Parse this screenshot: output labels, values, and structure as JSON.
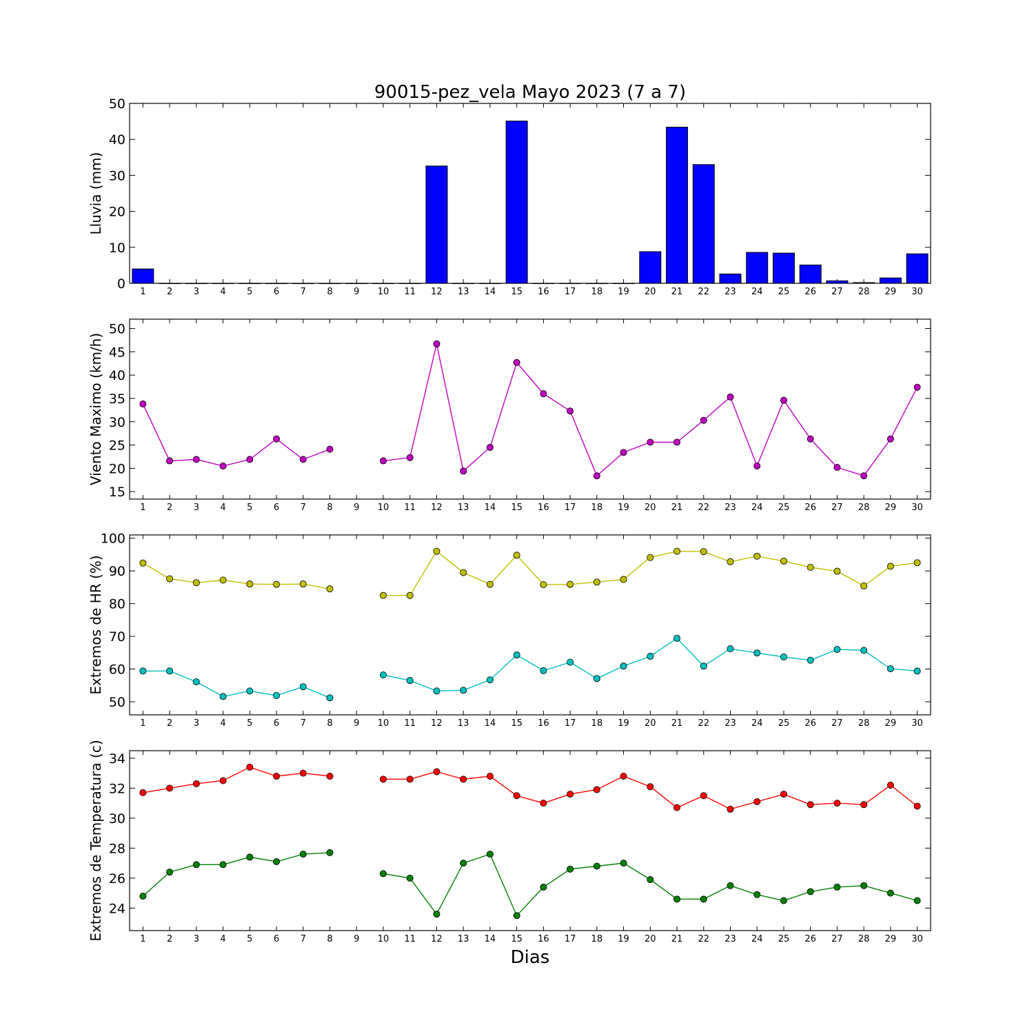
{
  "figure": {
    "title": "90015-pez_vela Mayo 2023  (7 a 7)",
    "xlabel": "Dias"
  },
  "chart_data": [
    {
      "type": "bar",
      "ylabel": "Lluvia (mm)",
      "ylim": [
        0,
        50
      ],
      "yticks": [
        0,
        10,
        20,
        30,
        40,
        50
      ],
      "categories": [
        1,
        2,
        3,
        4,
        5,
        6,
        7,
        8,
        9,
        10,
        11,
        12,
        13,
        14,
        15,
        16,
        17,
        18,
        19,
        20,
        21,
        22,
        23,
        24,
        25,
        26,
        27,
        28,
        29,
        30
      ],
      "series": [
        {
          "color": "#0000ff",
          "values": [
            4.0,
            0,
            0,
            0,
            0,
            0,
            0,
            0,
            0,
            0,
            0,
            32.6,
            0,
            0,
            45.1,
            0,
            0,
            0,
            0,
            8.8,
            43.4,
            33.0,
            2.6,
            8.6,
            8.4,
            5.1,
            0.7,
            0.2,
            1.5,
            8.2
          ]
        }
      ]
    },
    {
      "type": "line",
      "ylabel": "Viento Maximo (km/h)",
      "ylim": [
        13.4,
        52
      ],
      "yticks": [
        15,
        20,
        25,
        30,
        35,
        40,
        45,
        50
      ],
      "categories": [
        1,
        2,
        3,
        4,
        5,
        6,
        7,
        8,
        9,
        10,
        11,
        12,
        13,
        14,
        15,
        16,
        17,
        18,
        19,
        20,
        21,
        22,
        23,
        24,
        25,
        26,
        27,
        28,
        29,
        30
      ],
      "series": [
        {
          "color": "#bf00bf",
          "values": [
            33.8,
            21.6,
            21.9,
            20.5,
            21.9,
            26.3,
            21.9,
            24.1,
            null,
            21.6,
            22.3,
            46.7,
            19.4,
            24.5,
            42.7,
            36.0,
            32.3,
            18.4,
            23.4,
            25.6,
            25.6,
            30.3,
            35.3,
            20.5,
            34.6,
            26.3,
            20.2,
            18.4,
            26.3,
            37.4
          ]
        }
      ]
    },
    {
      "type": "line",
      "ylabel": "Extremos de HR (%)",
      "ylim": [
        46,
        101
      ],
      "yticks": [
        50,
        60,
        70,
        80,
        90,
        100
      ],
      "categories": [
        1,
        2,
        3,
        4,
        5,
        6,
        7,
        8,
        9,
        10,
        11,
        12,
        13,
        14,
        15,
        16,
        17,
        18,
        19,
        20,
        21,
        22,
        23,
        24,
        25,
        26,
        27,
        28,
        29,
        30
      ],
      "series": [
        {
          "color": "#bfbf00",
          "values": [
            92.4,
            87.6,
            86.4,
            87.2,
            86.0,
            85.9,
            86.0,
            84.5,
            null,
            82.5,
            82.5,
            96.0,
            89.5,
            85.9,
            94.8,
            85.8,
            85.9,
            86.6,
            87.4,
            94.1,
            96.0,
            95.9,
            92.8,
            94.5,
            93.0,
            91.1,
            89.9,
            85.4,
            91.4,
            92.5
          ]
        },
        {
          "color": "#00bfbf",
          "values": [
            59.4,
            59.4,
            56.1,
            51.6,
            53.3,
            51.9,
            54.6,
            51.2,
            null,
            58.2,
            56.5,
            53.3,
            53.5,
            56.7,
            64.3,
            59.5,
            62.1,
            57.1,
            60.9,
            63.9,
            69.4,
            60.9,
            66.2,
            64.9,
            63.7,
            62.7,
            66.0,
            65.7,
            60.1,
            59.4
          ]
        }
      ]
    },
    {
      "type": "line",
      "ylabel": "Extremos de Temperatura (c)",
      "ylim": [
        22.5,
        34.5
      ],
      "yticks": [
        24,
        26,
        28,
        30,
        32,
        34
      ],
      "categories": [
        1,
        2,
        3,
        4,
        5,
        6,
        7,
        8,
        9,
        10,
        11,
        12,
        13,
        14,
        15,
        16,
        17,
        18,
        19,
        20,
        21,
        22,
        23,
        24,
        25,
        26,
        27,
        28,
        29,
        30
      ],
      "series": [
        {
          "color": "#ff0000",
          "values": [
            31.7,
            32.0,
            32.3,
            32.5,
            33.4,
            32.8,
            33.0,
            32.8,
            null,
            32.6,
            32.6,
            33.1,
            32.6,
            32.8,
            31.5,
            31.0,
            31.6,
            31.9,
            32.8,
            32.1,
            30.7,
            31.5,
            30.6,
            31.1,
            31.6,
            30.9,
            31.0,
            30.9,
            32.2,
            30.8
          ]
        },
        {
          "color": "#008000",
          "values": [
            24.8,
            26.4,
            26.9,
            26.9,
            27.4,
            27.1,
            27.6,
            27.7,
            null,
            26.3,
            26.0,
            23.6,
            27.0,
            27.6,
            23.5,
            25.4,
            26.6,
            26.8,
            27.0,
            25.9,
            24.6,
            24.6,
            25.5,
            24.9,
            24.5,
            25.1,
            25.4,
            25.5,
            25.0,
            24.5
          ]
        }
      ]
    }
  ]
}
